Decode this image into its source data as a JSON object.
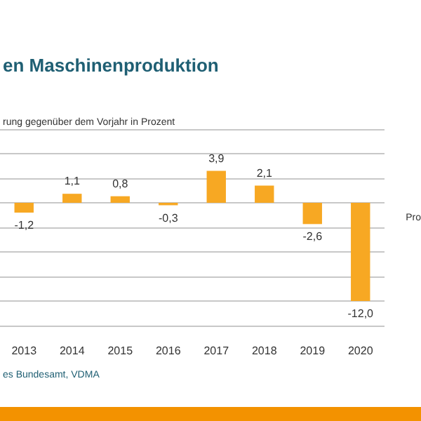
{
  "chart_data": {
    "type": "bar",
    "title": "en Maschinenproduktion",
    "subtitle": "rung gegenüber dem Vorjahr in Prozent",
    "categories": [
      "2013",
      "2014",
      "2015",
      "2016",
      "2017",
      "2018",
      "2019",
      "2020"
    ],
    "values": [
      -1.2,
      1.1,
      0.8,
      -0.3,
      3.9,
      2.1,
      -2.6,
      -12.0
    ],
    "color": "#f7a823",
    "value_labels": [
      "-1,2",
      "1,1",
      "0,8",
      "-0,3",
      "3,9",
      "2,1",
      "-2,6",
      "-12,0"
    ],
    "ylim": [
      -15,
      9
    ],
    "yticks": [
      {
        "value": -15,
        "label": null
      },
      {
        "value": -12,
        "label": null
      },
      {
        "value": -9,
        "label": null
      },
      {
        "value": -6,
        "label": null
      },
      {
        "value": -3,
        "label": null
      },
      {
        "value": 0,
        "label": null
      },
      {
        "value": 3,
        "label": null
      },
      {
        "value": 6,
        "label": null
      },
      {
        "value": 9,
        "label": null
      }
    ],
    "tick_labels": "x",
    "grid": "y",
    "annotations": [
      "Pro",
      "es Bundesamt, VDMA"
    ]
  }
}
